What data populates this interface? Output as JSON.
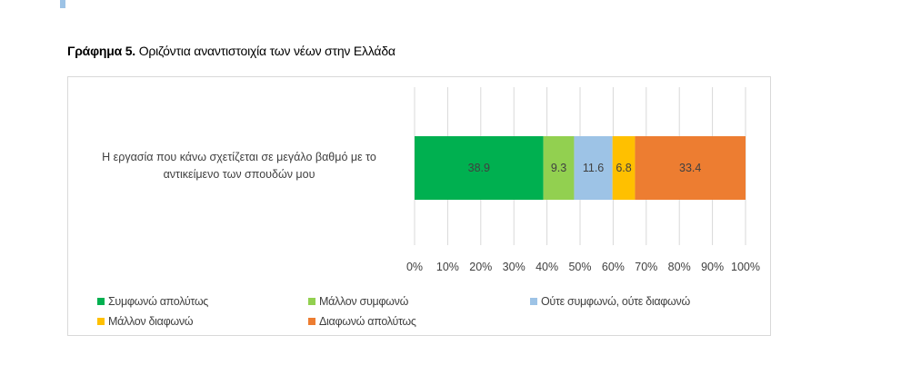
{
  "title": {
    "bold": "Γράφημα 5.",
    "text": " Οριζόντια αναντιστοιχία των νέων στην Ελλάδα"
  },
  "chart_data": {
    "type": "bar",
    "orientation": "horizontal-stacked-100",
    "categories": [
      "Η εργασία που κάνω σχετίζεται σε μεγάλο βαθμό με το αντικείμενο των σπουδών μου"
    ],
    "category_lines": [
      "Η εργασία που κάνω σχετίζεται σε μεγάλο βαθμό με το",
      "αντικείμενο των σπουδών μου"
    ],
    "series": [
      {
        "name": "Συμφωνώ απολύτως",
        "values": [
          38.9
        ],
        "color": "#00b050"
      },
      {
        "name": "Μάλλον συμφωνώ",
        "values": [
          9.3
        ],
        "color": "#92d050"
      },
      {
        "name": "Ούτε συμφωνώ, ούτε διαφωνώ",
        "values": [
          11.6
        ],
        "color": "#9dc3e6"
      },
      {
        "name": "Μάλλον διαφωνώ",
        "values": [
          6.8
        ],
        "color": "#ffc000"
      },
      {
        "name": "Διαφωνώ απολύτως",
        "values": [
          33.4
        ],
        "color": "#ed7d31"
      }
    ],
    "xlim": [
      0,
      100
    ],
    "xticks": [
      "0%",
      "10%",
      "20%",
      "30%",
      "40%",
      "50%",
      "60%",
      "70%",
      "80%",
      "90%",
      "100%"
    ],
    "grid": true,
    "legend": "bottom"
  }
}
